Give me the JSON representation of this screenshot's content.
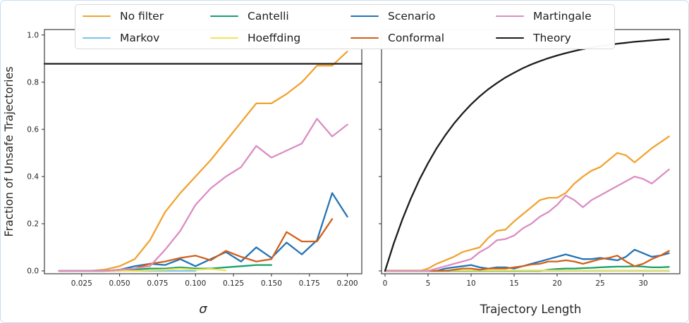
{
  "figure": {
    "background": "#ffffff",
    "frame_border_color": "#c9def2",
    "axis_color": "#3c3c3c",
    "text_color": "#262626"
  },
  "legend": {
    "entries": [
      {
        "label": "No filter",
        "color": "#f0a330"
      },
      {
        "label": "Markov",
        "color": "#7ec4f0"
      },
      {
        "label": "Cantelli",
        "color": "#16a06c"
      },
      {
        "label": "Hoeffding",
        "color": "#f2e25a"
      },
      {
        "label": "Scenario",
        "color": "#2474b6"
      },
      {
        "label": "Conformal",
        "color": "#d2601a"
      },
      {
        "label": "Martingale",
        "color": "#db8dc2"
      },
      {
        "label": "Theory",
        "color": "#1c1c1c"
      }
    ]
  },
  "chart_data": [
    {
      "type": "line",
      "title": "",
      "xlabel": "σ",
      "ylabel": "Fraction of Unsafe Trajectories",
      "xlim": [
        0.0005,
        0.2095
      ],
      "ylim": [
        -0.012,
        1.023
      ],
      "xticks": [
        0.025,
        0.05,
        0.075,
        0.1,
        0.125,
        0.15,
        0.175,
        0.2
      ],
      "xtick_labels": [
        "0.025",
        "0.050",
        "0.075",
        "0.100",
        "0.125",
        "0.150",
        "0.175",
        "0.200"
      ],
      "yticks": [
        0.0,
        0.2,
        0.4,
        0.6,
        0.8,
        1.0
      ],
      "ytick_labels": [
        "0.0",
        "0.2",
        "0.4",
        "0.6",
        "0.8",
        "1.0"
      ],
      "grid": false,
      "series": [
        {
          "name": "No filter",
          "color": "#f0a330",
          "x": [
            0.01,
            0.02,
            0.03,
            0.04,
            0.05,
            0.06,
            0.07,
            0.08,
            0.09,
            0.1,
            0.11,
            0.12,
            0.13,
            0.14,
            0.15,
            0.16,
            0.17,
            0.18,
            0.19,
            0.2
          ],
          "y": [
            0,
            0,
            0,
            0.005,
            0.02,
            0.05,
            0.13,
            0.25,
            0.33,
            0.4,
            0.47,
            0.55,
            0.63,
            0.71,
            0.71,
            0.75,
            0.8,
            0.87,
            0.87,
            0.93
          ]
        },
        {
          "name": "Markov",
          "color": "#7ec4f0",
          "x": [
            0.01,
            0.02,
            0.03,
            0.04,
            0.05,
            0.06,
            0.07,
            0.08,
            0.09,
            0.1
          ],
          "y": [
            0,
            0,
            0,
            0,
            0,
            0,
            0,
            0,
            0,
            0
          ]
        },
        {
          "name": "Cantelli",
          "color": "#16a06c",
          "x": [
            0.01,
            0.02,
            0.03,
            0.04,
            0.05,
            0.06,
            0.07,
            0.08,
            0.09,
            0.1,
            0.11,
            0.12,
            0.13,
            0.14,
            0.15
          ],
          "y": [
            0,
            0,
            0,
            0,
            0,
            0.005,
            0.01,
            0.01,
            0.015,
            0.01,
            0.01,
            0.015,
            0.02,
            0.025,
            0.025
          ]
        },
        {
          "name": "Hoeffding",
          "color": "#f2e25a",
          "x": [
            0.01,
            0.02,
            0.03,
            0.04,
            0.05,
            0.06,
            0.07,
            0.08,
            0.09,
            0.1,
            0.11,
            0.12
          ],
          "y": [
            0,
            0,
            0,
            0,
            0,
            0,
            0.003,
            0.005,
            0.01,
            0.005,
            0.008,
            0.002
          ]
        },
        {
          "name": "Scenario",
          "color": "#2474b6",
          "x": [
            0.01,
            0.02,
            0.03,
            0.04,
            0.05,
            0.06,
            0.07,
            0.08,
            0.09,
            0.1,
            0.11,
            0.12,
            0.13,
            0.14,
            0.15,
            0.16,
            0.17,
            0.18,
            0.19,
            0.2
          ],
          "y": [
            0,
            0,
            0,
            0,
            0.005,
            0.02,
            0.03,
            0.025,
            0.05,
            0.02,
            0.05,
            0.08,
            0.04,
            0.1,
            0.055,
            0.12,
            0.07,
            0.13,
            0.33,
            0.23
          ]
        },
        {
          "name": "Conformal",
          "color": "#d2601a",
          "x": [
            0.01,
            0.02,
            0.03,
            0.04,
            0.05,
            0.06,
            0.07,
            0.08,
            0.09,
            0.1,
            0.11,
            0.12,
            0.13,
            0.14,
            0.15,
            0.16,
            0.17,
            0.18,
            0.19
          ],
          "y": [
            0,
            0,
            0,
            0,
            0.005,
            0.01,
            0.03,
            0.04,
            0.055,
            0.065,
            0.045,
            0.085,
            0.06,
            0.04,
            0.05,
            0.165,
            0.125,
            0.125,
            0.22
          ]
        },
        {
          "name": "Martingale",
          "color": "#db8dc2",
          "x": [
            0.01,
            0.02,
            0.03,
            0.04,
            0.05,
            0.06,
            0.07,
            0.08,
            0.09,
            0.1,
            0.11,
            0.12,
            0.13,
            0.14,
            0.15,
            0.16,
            0.17,
            0.18,
            0.19,
            0.2
          ],
          "y": [
            0,
            0,
            0,
            0,
            0.005,
            0.01,
            0.02,
            0.09,
            0.17,
            0.28,
            0.35,
            0.4,
            0.44,
            0.53,
            0.48,
            0.51,
            0.54,
            0.645,
            0.57,
            0.62
          ]
        },
        {
          "name": "Theory",
          "color": "#1c1c1c",
          "x": [
            0.0005,
            0.2095
          ],
          "y": [
            0.878,
            0.878
          ]
        }
      ]
    },
    {
      "type": "line",
      "title": "",
      "xlabel": "Trajectory Length",
      "ylabel": "",
      "xlim": [
        -0.41,
        34.26
      ],
      "ylim": [
        -0.012,
        1.023
      ],
      "xticks": [
        0,
        5,
        10,
        15,
        20,
        25,
        30
      ],
      "xtick_labels": [
        "0",
        "5",
        "10",
        "15",
        "20",
        "25",
        "30"
      ],
      "yticks": [
        0.0,
        0.2,
        0.4,
        0.6,
        0.8,
        1.0
      ],
      "ytick_labels": [],
      "grid": false,
      "series": [
        {
          "name": "No filter",
          "color": "#f0a330",
          "x": [
            0,
            1,
            2,
            3,
            4,
            5,
            6,
            7,
            8,
            9,
            10,
            11,
            12,
            13,
            14,
            15,
            16,
            17,
            18,
            19,
            20,
            21,
            22,
            23,
            24,
            25,
            26,
            27,
            28,
            29,
            30,
            31,
            32,
            33
          ],
          "y": [
            0,
            0,
            0,
            0,
            0,
            0.01,
            0.03,
            0.045,
            0.06,
            0.08,
            0.09,
            0.1,
            0.14,
            0.17,
            0.175,
            0.21,
            0.24,
            0.27,
            0.3,
            0.31,
            0.31,
            0.33,
            0.37,
            0.4,
            0.425,
            0.44,
            0.47,
            0.5,
            0.49,
            0.46,
            0.49,
            0.52,
            0.545,
            0.57
          ]
        },
        {
          "name": "Markov",
          "color": "#7ec4f0",
          "x": [
            0,
            1,
            2,
            3,
            4,
            5,
            6,
            7,
            8,
            9,
            10,
            11,
            12,
            13,
            14,
            15,
            16,
            17,
            18,
            19,
            20,
            21,
            22,
            23,
            24,
            25,
            26,
            27,
            28,
            29,
            30,
            31,
            32,
            33
          ],
          "y": [
            0,
            0,
            0,
            0,
            0,
            0,
            0,
            0,
            0,
            0,
            0,
            0,
            0,
            0,
            0,
            0,
            0,
            0,
            0,
            0,
            0,
            0,
            0,
            0,
            0,
            0,
            0,
            0,
            0,
            0,
            0,
            0,
            0,
            0
          ]
        },
        {
          "name": "Cantelli",
          "color": "#16a06c",
          "x": [
            0,
            1,
            2,
            3,
            4,
            5,
            6,
            7,
            8,
            9,
            10,
            11,
            12,
            13,
            14,
            15,
            16,
            17,
            18,
            19,
            20,
            21,
            22,
            23,
            24,
            25,
            26,
            27,
            28,
            29,
            30,
            31,
            32,
            33
          ],
          "y": [
            0,
            0,
            0,
            0,
            0,
            0,
            0,
            0,
            0,
            0,
            0,
            0,
            0,
            0,
            0,
            0,
            0,
            0,
            0,
            0.005,
            0.008,
            0.01,
            0.01,
            0.012,
            0.013,
            0.015,
            0.017,
            0.018,
            0.018,
            0.02,
            0.018,
            0.015,
            0.015,
            0.017
          ]
        },
        {
          "name": "Hoeffding",
          "color": "#f2e25a",
          "x": [
            0,
            1,
            2,
            3,
            4,
            5,
            6,
            7,
            8,
            9,
            10,
            11,
            12,
            13,
            14,
            15,
            16,
            17,
            18,
            19,
            20,
            21,
            22,
            23,
            24,
            25,
            26,
            27,
            28,
            29,
            30,
            31,
            32,
            33
          ],
          "y": [
            0.002,
            0.002,
            0.002,
            0.002,
            0.002,
            0.002,
            0.002,
            0.002,
            0.002,
            0.002,
            0.002,
            0.002,
            0.002,
            0.002,
            0.002,
            0.002,
            0.002,
            0.002,
            0.002,
            0.002,
            0.002,
            0.002,
            0.002,
            0.002,
            0.002,
            0.002,
            0.002,
            0.002,
            0.002,
            0.002,
            0.002,
            0.002,
            0.002,
            0.002
          ]
        },
        {
          "name": "Scenario",
          "color": "#2474b6",
          "x": [
            0,
            1,
            2,
            3,
            4,
            5,
            6,
            7,
            8,
            9,
            10,
            11,
            12,
            13,
            14,
            15,
            16,
            17,
            18,
            19,
            20,
            21,
            22,
            23,
            24,
            25,
            26,
            27,
            28,
            29,
            30,
            31,
            32,
            33
          ],
          "y": [
            0,
            0,
            0,
            0,
            0,
            0,
            0,
            0.01,
            0.015,
            0.02,
            0.025,
            0.015,
            0.01,
            0.015,
            0.015,
            0.01,
            0.02,
            0.03,
            0.04,
            0.05,
            0.06,
            0.07,
            0.06,
            0.05,
            0.05,
            0.055,
            0.05,
            0.045,
            0.06,
            0.09,
            0.075,
            0.06,
            0.065,
            0.075
          ]
        },
        {
          "name": "Conformal",
          "color": "#d2601a",
          "x": [
            0,
            1,
            2,
            3,
            4,
            5,
            6,
            7,
            8,
            9,
            10,
            11,
            12,
            13,
            14,
            15,
            16,
            17,
            18,
            19,
            20,
            21,
            22,
            23,
            24,
            25,
            26,
            27,
            28,
            29,
            30,
            31,
            32,
            33
          ],
          "y": [
            0,
            0,
            0,
            0,
            0,
            0,
            0,
            0,
            0.005,
            0.01,
            0.01,
            0.005,
            0.01,
            0.01,
            0.01,
            0.015,
            0.02,
            0.027,
            0.03,
            0.04,
            0.04,
            0.045,
            0.04,
            0.03,
            0.04,
            0.05,
            0.055,
            0.065,
            0.04,
            0.02,
            0.03,
            0.05,
            0.065,
            0.085
          ]
        },
        {
          "name": "Martingale",
          "color": "#db8dc2",
          "x": [
            0,
            1,
            2,
            3,
            4,
            5,
            6,
            7,
            8,
            9,
            10,
            11,
            12,
            13,
            14,
            15,
            16,
            17,
            18,
            19,
            20,
            21,
            22,
            23,
            24,
            25,
            26,
            27,
            28,
            29,
            30,
            31,
            32,
            33
          ],
          "y": [
            0,
            0,
            0,
            0,
            0,
            0,
            0.01,
            0.02,
            0.03,
            0.04,
            0.05,
            0.08,
            0.1,
            0.13,
            0.135,
            0.15,
            0.18,
            0.2,
            0.23,
            0.25,
            0.28,
            0.32,
            0.3,
            0.27,
            0.3,
            0.32,
            0.34,
            0.36,
            0.38,
            0.4,
            0.39,
            0.37,
            0.4,
            0.43
          ]
        },
        {
          "name": "Theory",
          "color": "#1c1c1c",
          "x": [
            0,
            1,
            2,
            3,
            4,
            5,
            6,
            7,
            8,
            9,
            10,
            11,
            12,
            13,
            14,
            15,
            16,
            17,
            18,
            19,
            20,
            21,
            22,
            23,
            24,
            25,
            26,
            27,
            28,
            29,
            30,
            31,
            32,
            33
          ],
          "y": [
            0,
            0.115,
            0.217,
            0.307,
            0.387,
            0.457,
            0.52,
            0.575,
            0.624,
            0.667,
            0.706,
            0.74,
            0.77,
            0.796,
            0.82,
            0.84,
            0.859,
            0.875,
            0.889,
            0.902,
            0.913,
            0.923,
            0.932,
            0.94,
            0.947,
            0.953,
            0.958,
            0.963,
            0.967,
            0.971,
            0.974,
            0.977,
            0.98,
            0.982
          ]
        }
      ]
    }
  ]
}
